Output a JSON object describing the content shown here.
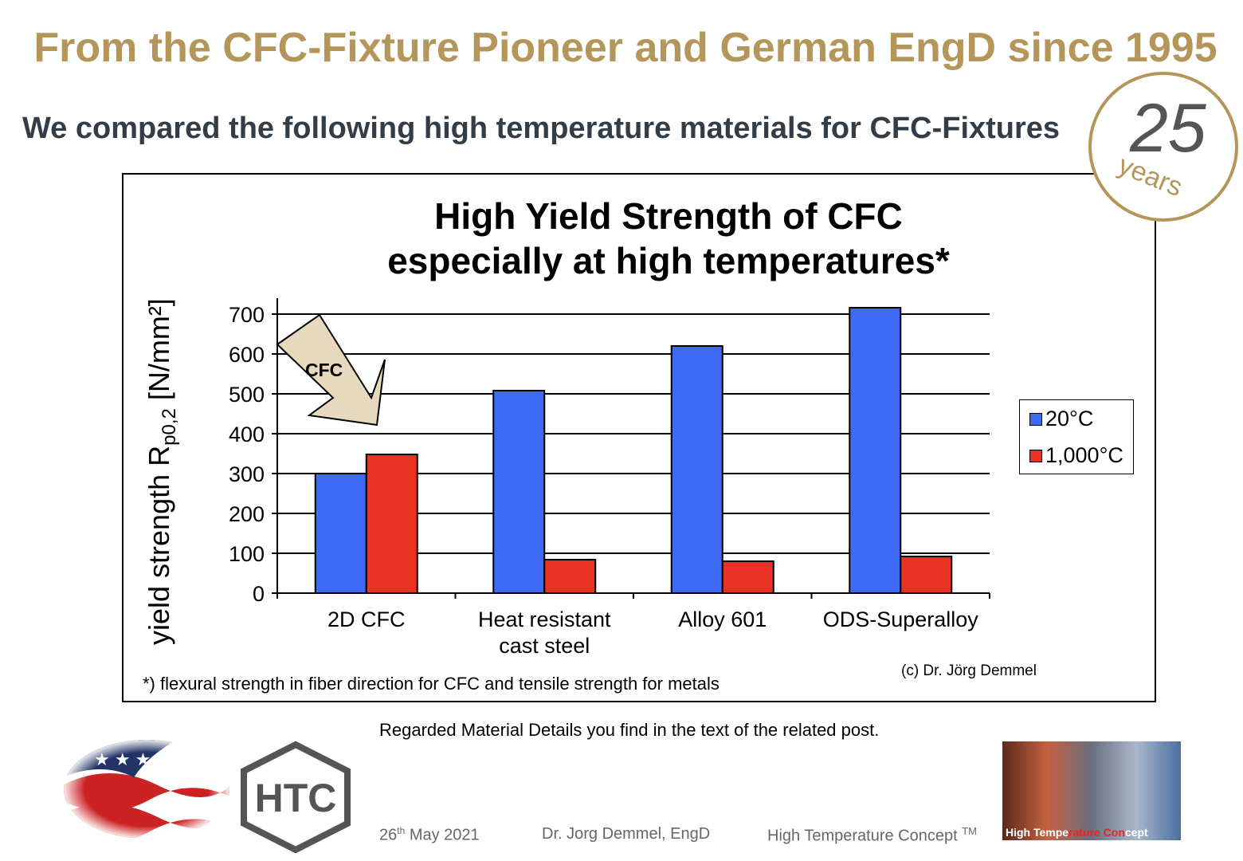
{
  "header": {
    "title": "From the CFC-Fixture Pioneer and German EngD since 1995",
    "subtitle": "We compared the following high temperature materials for CFC-Fixtures"
  },
  "badge": {
    "number": "25",
    "label": "years"
  },
  "chart_data": {
    "type": "bar",
    "title_line1": "High Yield Strength of CFC",
    "title_line2": "especially at high temperatures*",
    "ylabel": "yield strength R",
    "ylabel_sub": "p0,2",
    "ylabel_unit": " [N/mm²]",
    "ylim": [
      0,
      700
    ],
    "yticks": [
      0,
      100,
      200,
      300,
      400,
      500,
      600,
      700
    ],
    "categories": [
      "2D CFC",
      "Heat resistant cast steel",
      "Alloy 601",
      "ODS-Superalloy"
    ],
    "category_lines": [
      [
        "2D CFC"
      ],
      [
        "Heat resistant",
        "cast steel"
      ],
      [
        "Alloy 601"
      ],
      [
        "ODS-Superalloy"
      ]
    ],
    "series": [
      {
        "name": "20°C",
        "color": "#3d6bf5",
        "values": [
          300,
          508,
          620,
          716
        ]
      },
      {
        "name": "1,000°C",
        "color": "#e83324",
        "values": [
          348,
          84,
          80,
          92
        ]
      }
    ],
    "grid": true,
    "legend": "right",
    "annotation": "CFC",
    "footnote": "*) flexural strength in fiber direction for CFC and tensile strength for metals",
    "copyright": "(c) Dr. Jörg Demmel"
  },
  "note": "Regarded Material Details you find in the text of the related post.",
  "footer": {
    "date": "26",
    "date_sup": "th",
    "date_rest": " May 2021",
    "author": "Dr. Jorg Demmel, EngD",
    "company": "High Temperature Concept",
    "tm": "TM",
    "logo_text": "HTC",
    "photo_caption_a": "High Tempe",
    "photo_caption_b": "rature Con",
    "photo_caption_c": "cept"
  }
}
